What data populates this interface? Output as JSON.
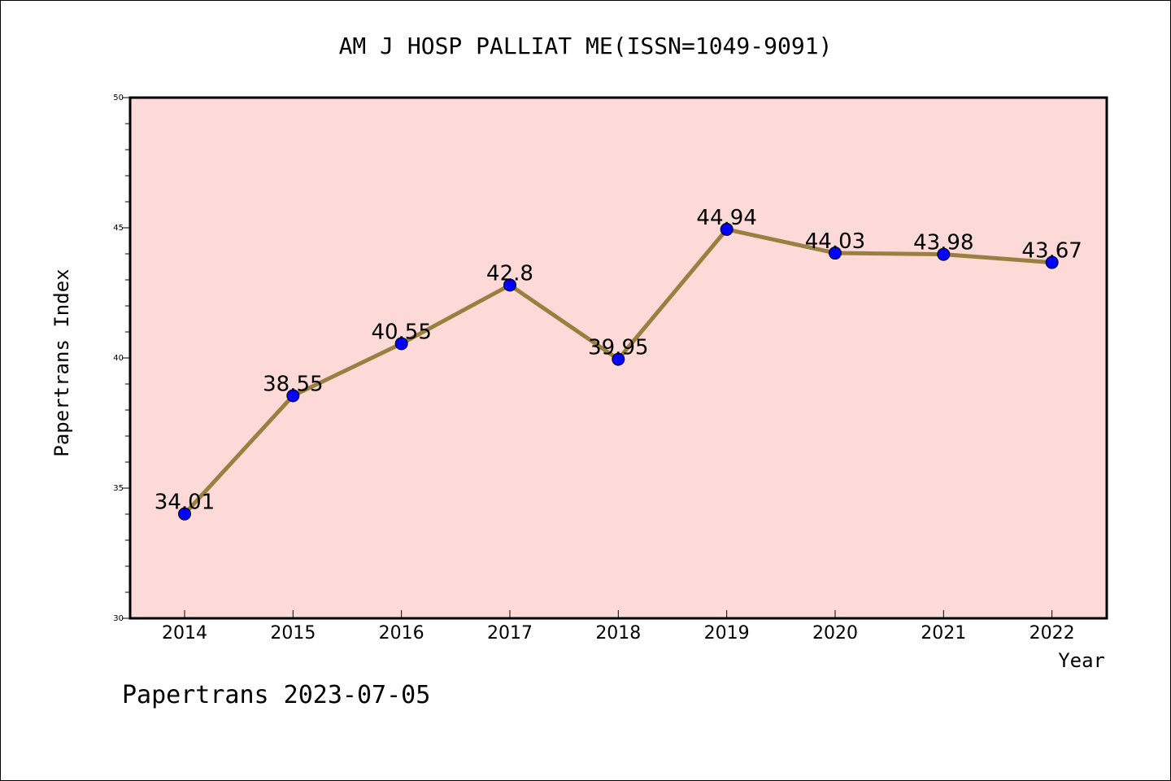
{
  "chart_data": {
    "type": "line",
    "title": "AM J HOSP PALLIAT ME(ISSN=1049-9091)",
    "xlabel": "Year",
    "ylabel": "Papertrans Index",
    "categories": [
      "2014",
      "2015",
      "2016",
      "2017",
      "2018",
      "2019",
      "2020",
      "2021",
      "2022"
    ],
    "series": [
      {
        "values": [
          34.01,
          38.55,
          40.55,
          42.8,
          39.95,
          44.94,
          44.03,
          43.98,
          43.67
        ],
        "data_labels": [
          "34.01",
          "38.55",
          "40.55",
          "42.8",
          "39.95",
          "44.94",
          "44.03",
          "43.98",
          "43.67"
        ],
        "line_color": "#9a8040",
        "marker_color": "#0000ff"
      }
    ],
    "ylim": [
      30,
      50
    ],
    "yticks": [
      "30",
      "35",
      "40",
      "45",
      "50"
    ],
    "grid": false,
    "plot_background": "#fddad7",
    "footer": "Papertrans 2023-07-05"
  }
}
